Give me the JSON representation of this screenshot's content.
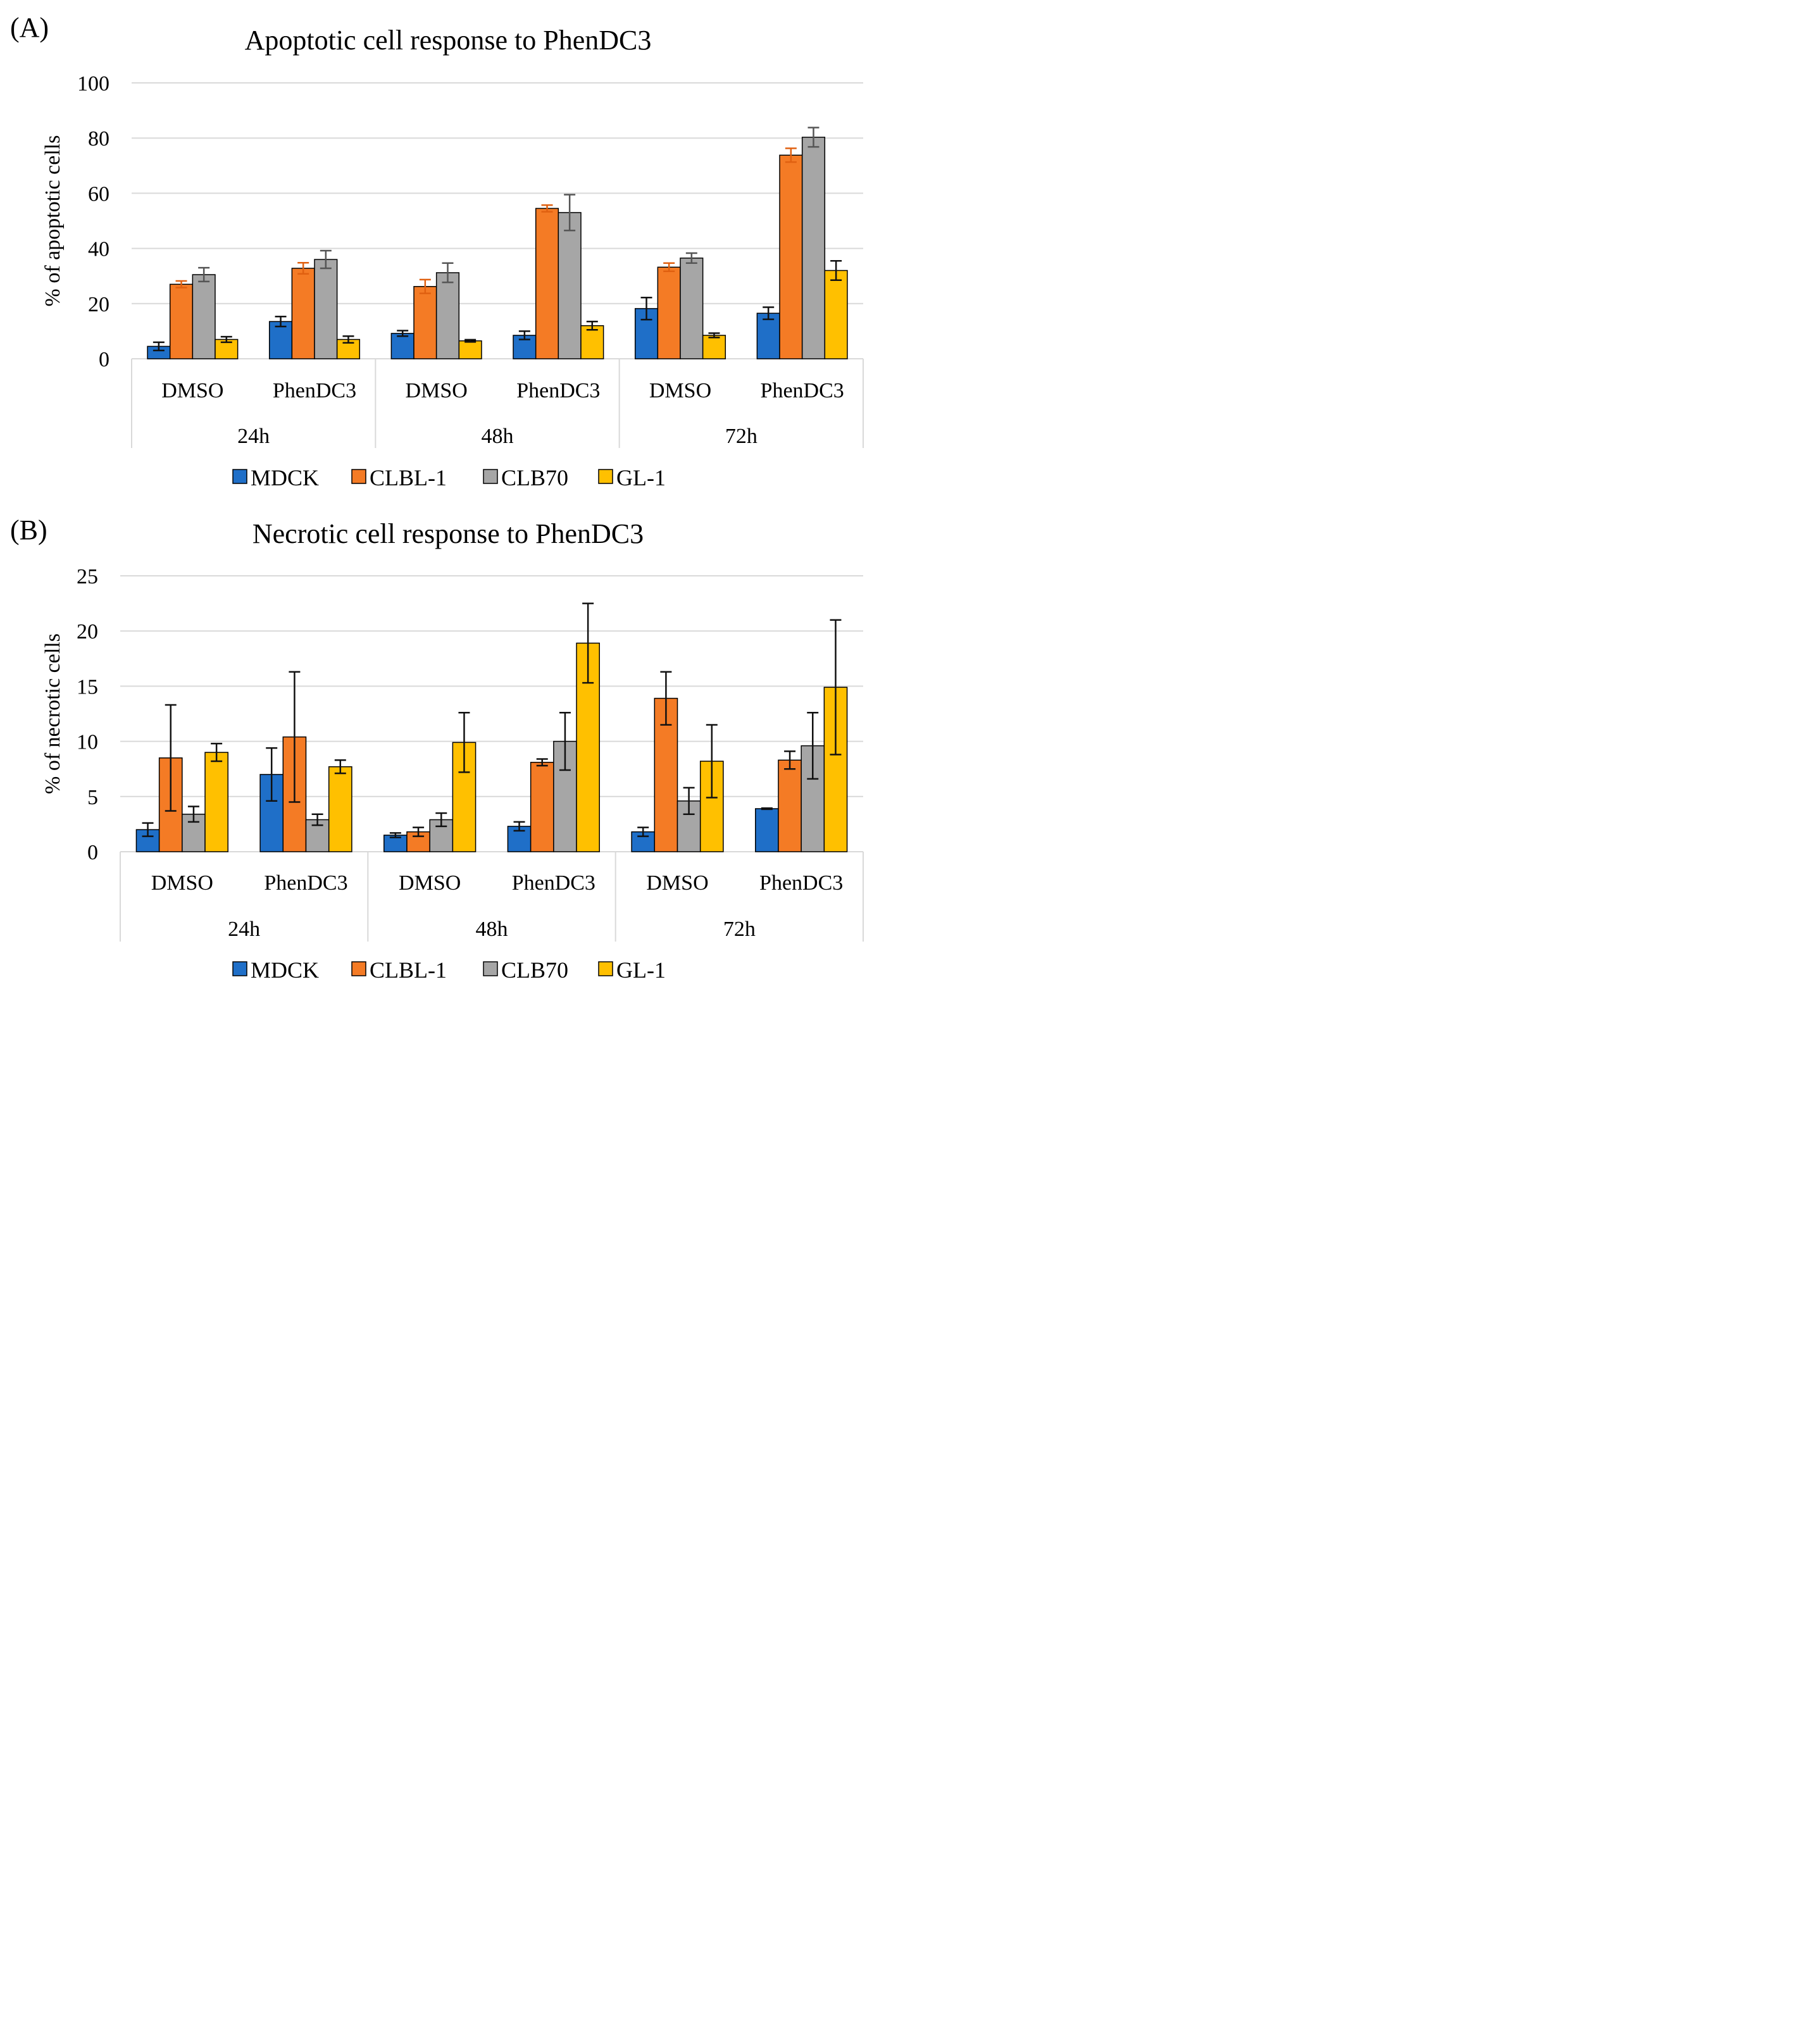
{
  "colors": {
    "MDCK": "#1f6fc8",
    "CLBL-1": "#f47b25",
    "CLB70": "#a6a6a6",
    "GL-1": "#ffc000",
    "errorA": [
      "#111111",
      "#e06010",
      "#555555",
      "#111111"
    ],
    "errorB": [
      "#111111",
      "#111111",
      "#111111",
      "#111111"
    ]
  },
  "chart_data": [
    {
      "type": "bar",
      "panel": "(A)",
      "title": "Apoptotic cell response to PhenDC3",
      "ylabel": "% of apoptotic cells",
      "xlabel": "",
      "ylim": [
        0,
        100
      ],
      "yticks": [
        "0",
        "20",
        "40",
        "60",
        "80",
        "100"
      ],
      "grid": true,
      "legend_placement": "bottom",
      "categories": [
        "DMSO",
        "PhenDC3",
        "DMSO",
        "PhenDC3",
        "DMSO",
        "PhenDC3"
      ],
      "groups": [
        "24h",
        "48h",
        "72h"
      ],
      "series": [
        {
          "name": "MDCK",
          "values": [
            4.5,
            13.5,
            9.2,
            8.5,
            18.2,
            16.5
          ],
          "errors": [
            1.5,
            1.8,
            1.0,
            1.5,
            4.0,
            2.2
          ]
        },
        {
          "name": "CLBL-1",
          "values": [
            27.0,
            32.8,
            26.2,
            54.5,
            33.2,
            73.8
          ],
          "errors": [
            1.2,
            2.0,
            2.5,
            1.2,
            1.5,
            2.5
          ]
        },
        {
          "name": "CLB70",
          "values": [
            30.5,
            36.0,
            31.2,
            53.0,
            36.5,
            80.3
          ],
          "errors": [
            2.5,
            3.2,
            3.5,
            6.5,
            1.8,
            3.5
          ]
        },
        {
          "name": "GL-1",
          "values": [
            7.0,
            7.0,
            6.5,
            12.0,
            8.5,
            32.0
          ],
          "errors": [
            1.0,
            1.2,
            0.4,
            1.5,
            0.8,
            3.5
          ]
        }
      ]
    },
    {
      "type": "bar",
      "panel": "(B)",
      "title": "Necrotic cell response to PhenDC3",
      "ylabel": "% of necrotic cells",
      "xlabel": "",
      "ylim": [
        0,
        25
      ],
      "yticks": [
        "0",
        "5",
        "10",
        "15",
        "20",
        "25"
      ],
      "grid": true,
      "legend_placement": "bottom",
      "categories": [
        "DMSO",
        "PhenDC3",
        "DMSO",
        "PhenDC3",
        "DMSO",
        "PhenDC3"
      ],
      "groups": [
        "24h",
        "48h",
        "72h"
      ],
      "series": [
        {
          "name": "MDCK",
          "values": [
            2.0,
            7.0,
            1.5,
            2.3,
            1.8,
            3.9
          ],
          "errors": [
            0.6,
            2.4,
            0.2,
            0.4,
            0.4,
            0.05
          ]
        },
        {
          "name": "CLBL-1",
          "values": [
            8.5,
            10.4,
            1.8,
            8.1,
            13.9,
            8.3
          ],
          "errors": [
            4.8,
            5.9,
            0.4,
            0.3,
            2.4,
            0.8
          ]
        },
        {
          "name": "CLB70",
          "values": [
            3.4,
            2.9,
            2.9,
            10.0,
            4.6,
            9.6
          ],
          "errors": [
            0.7,
            0.5,
            0.6,
            2.6,
            1.2,
            3.0
          ]
        },
        {
          "name": "GL-1",
          "values": [
            9.0,
            7.7,
            9.9,
            18.9,
            8.2,
            14.9
          ],
          "errors": [
            0.8,
            0.6,
            2.7,
            3.6,
            3.3,
            6.1
          ]
        }
      ]
    }
  ]
}
